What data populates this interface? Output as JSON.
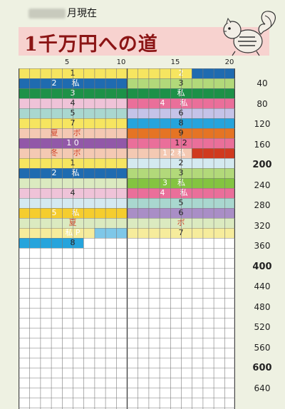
{
  "header": {
    "date_suffix": "月現在",
    "title": "1千万円への道"
  },
  "top_scale": [
    "5",
    "10",
    "15",
    "20"
  ],
  "row_scale": [
    {
      "label": "40",
      "bold": false
    },
    {
      "label": "80",
      "bold": false
    },
    {
      "label": "120",
      "bold": false
    },
    {
      "label": "160",
      "bold": false
    },
    {
      "label": "200",
      "bold": true
    },
    {
      "label": "240",
      "bold": false
    },
    {
      "label": "280",
      "bold": false
    },
    {
      "label": "320",
      "bold": false
    },
    {
      "label": "360",
      "bold": false
    },
    {
      "label": "400",
      "bold": true
    },
    {
      "label": "440",
      "bold": false
    },
    {
      "label": "480",
      "bold": false
    },
    {
      "label": "520",
      "bold": false
    },
    {
      "label": "560",
      "bold": false
    },
    {
      "label": "600",
      "bold": true
    },
    {
      "label": "640",
      "bold": false
    }
  ],
  "rows": [
    {
      "left": {
        "color": "#f6e560",
        "label": "1",
        "light": false,
        "fill_cols": 10
      },
      "right": {
        "color": "#1f6bb0",
        "label": "2",
        "light": true,
        "fill_cols": 10,
        "pre_color": "#f6e560",
        "pre_cols": 6
      }
    },
    {
      "left": {
        "color": "#1f6bb0",
        "label": "2      私",
        "light": true,
        "fill_cols": 10
      },
      "right": {
        "color": "#b2d97a",
        "label": "3",
        "light": false,
        "fill_cols": 10
      }
    },
    {
      "left": {
        "color": "#1d9148",
        "label": "3",
        "light": true,
        "fill_cols": 10
      },
      "right": {
        "color": "#1d9148",
        "label": "私",
        "light": true,
        "fill_cols": 10
      }
    },
    {
      "left": {
        "color": "#efc3d8",
        "label": "4",
        "light": false,
        "fill_cols": 10
      },
      "right": {
        "color": "#ea6f9a",
        "label": "4      私",
        "light": true,
        "fill_cols": 10
      }
    },
    {
      "left": {
        "color": "#a9d7cf",
        "label": "5",
        "light": false,
        "fill_cols": 10
      },
      "right": {
        "color": "#c5c3e8",
        "label": "6",
        "light": false,
        "fill_cols": 10
      }
    },
    {
      "left": {
        "color": "#f6e560",
        "label": "7",
        "light": false,
        "fill_cols": 10
      },
      "right": {
        "color": "#26a4dc",
        "label": "8",
        "light": false,
        "fill_cols": 10
      }
    },
    {
      "left": {
        "color": "#f4c9b3",
        "label": "夏      ボ",
        "light": false,
        "fill_cols": 10,
        "text_color": "#d0452b"
      },
      "right": {
        "color": "#e57424",
        "label": "9",
        "light": false,
        "fill_cols": 10
      }
    },
    {
      "left": {
        "color": "#9258a8",
        "label": "1 0",
        "light": true,
        "fill_cols": 10
      },
      "right": {
        "color": "#ea6f9a",
        "label": "1 2",
        "light": false,
        "fill_cols": 10
      }
    },
    {
      "left": {
        "color": "#f4c9b3",
        "label": "冬      ボ",
        "light": false,
        "fill_cols": 10,
        "text_color": "#d0452b"
      },
      "right": {
        "color": "#f4c9b3",
        "label": "1 2 私",
        "light": true,
        "fill_cols": 10,
        "tail_color": "#d03a1f",
        "tail_cols": 4
      }
    },
    {
      "left": {
        "color": "#f6e560",
        "label": "1",
        "light": false,
        "fill_cols": 10
      },
      "right": {
        "color": "#d4e9f0",
        "label": "2",
        "light": false,
        "fill_cols": 10
      }
    },
    {
      "left": {
        "color": "#1f6bb0",
        "label": "2      私",
        "light": true,
        "fill_cols": 10
      },
      "right": {
        "color": "#b2d97a",
        "label": "3",
        "light": false,
        "fill_cols": 10
      }
    },
    {
      "left": {
        "color": "#dbeac0",
        "label": "",
        "light": false,
        "fill_cols": 10
      },
      "right": {
        "color": "#84c441",
        "label": "3    私",
        "light": true,
        "fill_cols": 10
      }
    },
    {
      "left": {
        "color": "#efc3d8",
        "label": "4",
        "light": false,
        "fill_cols": 10
      },
      "right": {
        "color": "#ea6f9a",
        "label": "4      私",
        "light": true,
        "fill_cols": 10
      }
    },
    {
      "left": {
        "color": "#d4e9f0",
        "label": "",
        "light": false,
        "fill_cols": 10
      },
      "right": {
        "color": "#a9d7cf",
        "label": "5",
        "light": false,
        "fill_cols": 10
      }
    },
    {
      "left": {
        "color": "#f5cd2e",
        "label": "5      私",
        "light": true,
        "fill_cols": 10
      },
      "right": {
        "color": "#a98ec6",
        "label": "6",
        "light": false,
        "fill_cols": 10
      }
    },
    {
      "left": {
        "color": "#dbeac0",
        "label": "夏",
        "light": false,
        "fill_cols": 10,
        "text_color": "#d0452b"
      },
      "right": {
        "color": "#dbeac0",
        "label": "ボ",
        "light": false,
        "fill_cols": 10,
        "text_color": "#d0452b"
      }
    },
    {
      "left": {
        "color": "#f6ec9c",
        "label": "私 P",
        "light": true,
        "fill_cols": 10,
        "tail_color": "#7ec7e8",
        "tail_cols": 3
      },
      "right": {
        "color": "#f6ec9c",
        "label": "7",
        "light": false,
        "fill_cols": 10
      }
    },
    {
      "left": {
        "color": "#26a4dc",
        "label": "8",
        "light": false,
        "fill_cols": 6
      },
      "right": {
        "color": "#ffffff",
        "label": "",
        "light": false,
        "fill_cols": 0
      }
    }
  ]
}
